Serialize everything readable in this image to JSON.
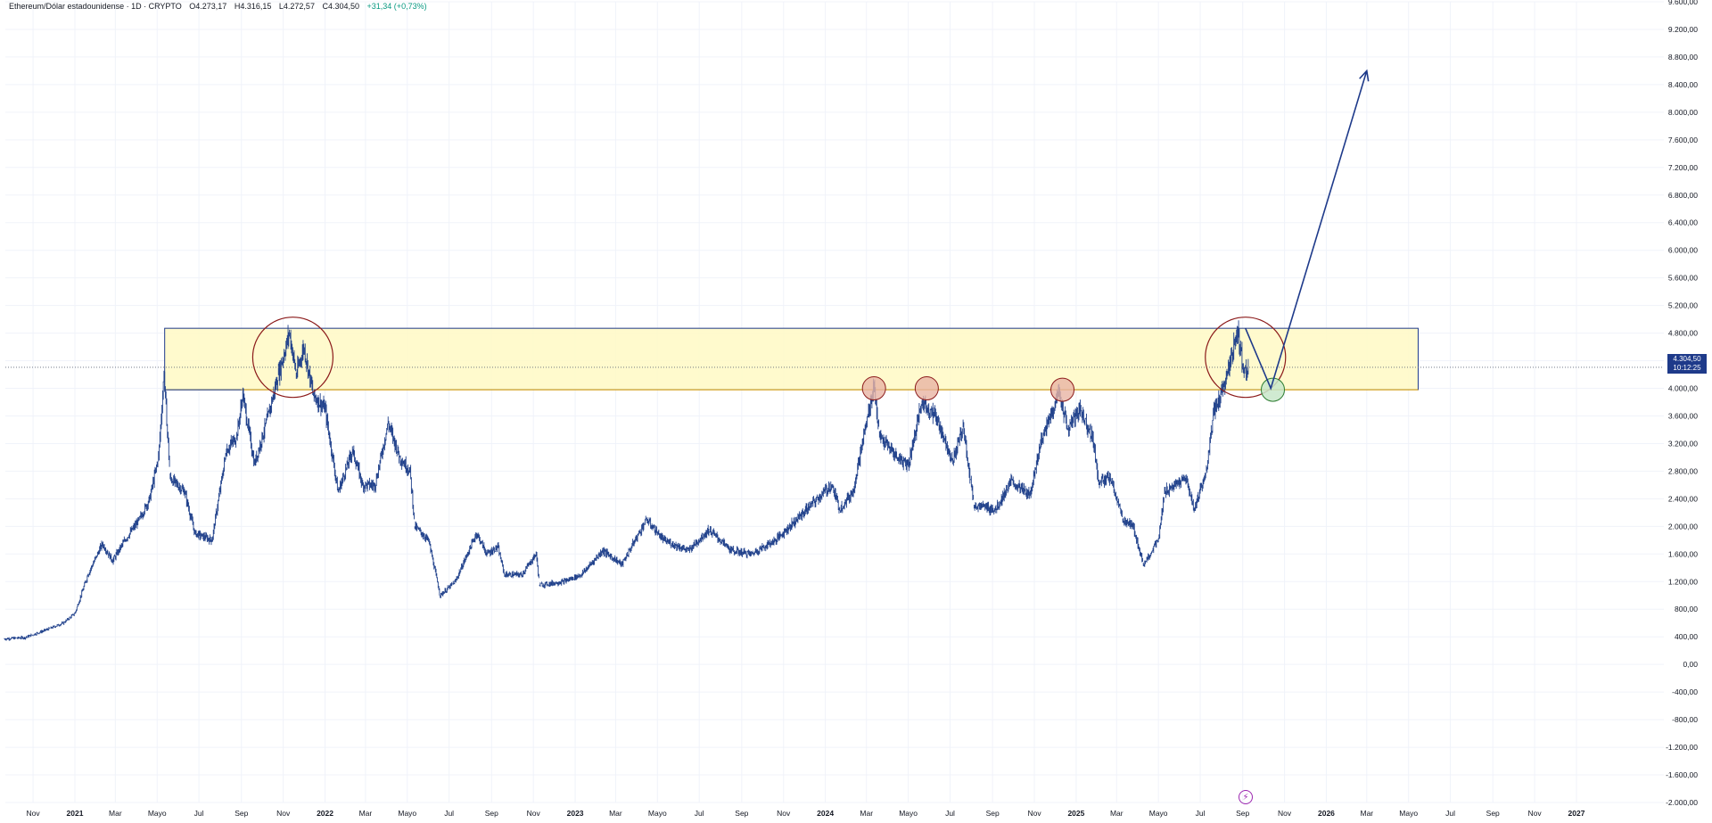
{
  "header": {
    "symbol": "Ethereum/Dólar estadounidense · 1D · CRYPTO",
    "open": "O4.273,17",
    "high": "H4.316,15",
    "low": "L4.272,57",
    "close": "C4.304,50",
    "change": "+31,34 (+0,73%)"
  },
  "price_tag": {
    "price": "4.304,50",
    "countdown": "10:12:25"
  },
  "colors": {
    "candle": "#1e3f8a",
    "zone_fill": "#fff9c4",
    "zone_border": "#1e3a8a",
    "zone_bottom": "#e0a000",
    "red_circle": "#8b1a1a",
    "touch_fill": "#e8b4a4",
    "retest_fill": "#c8e6c9",
    "retest_border": "#2e7d32",
    "arrow": "#1e3a8a",
    "grid": "#f0f3fa",
    "price_tag_bg": "#1e3a8a",
    "event_marker": "#9c27b0"
  },
  "icons": {
    "event_marker": "lightning-icon"
  },
  "chart_data": {
    "type": "candlestick",
    "title": "Ethereum/Dólar estadounidense · 1D · CRYPTO",
    "xlabel": "",
    "ylabel": "",
    "ylim": [
      -2000,
      9600
    ],
    "y_ticks": [
      "9.600,00",
      "9.200,00",
      "8.800,00",
      "8.400,00",
      "8.000,00",
      "7.600,00",
      "7.200,00",
      "6.800,00",
      "6.400,00",
      "6.000,00",
      "5.600,00",
      "5.200,00",
      "4.800,00",
      "4.400,00",
      "4.000,00",
      "3.600,00",
      "3.200,00",
      "2.800,00",
      "2.400,00",
      "2.000,00",
      "1.600,00",
      "1.200,00",
      "800,00",
      "400,00",
      "0,00",
      "-400,00",
      "-800,00",
      "-1.200,00",
      "-1.600,00",
      "-2.000,00"
    ],
    "y_tick_values": [
      9600,
      9200,
      8800,
      8400,
      8000,
      7600,
      7200,
      6800,
      6400,
      6000,
      5600,
      5200,
      4800,
      4400,
      4000,
      3600,
      3200,
      2800,
      2400,
      2000,
      1600,
      1200,
      800,
      400,
      0,
      -400,
      -800,
      -1200,
      -1600,
      -2000
    ],
    "x_ticks": [
      {
        "label": "Nov",
        "date": "2020-11-01",
        "bold": false
      },
      {
        "label": "2021",
        "date": "2021-01-01",
        "bold": true
      },
      {
        "label": "Mar",
        "date": "2021-03-01",
        "bold": false
      },
      {
        "label": "Mayo",
        "date": "2021-05-01",
        "bold": false
      },
      {
        "label": "Jul",
        "date": "2021-07-01",
        "bold": false
      },
      {
        "label": "Sep",
        "date": "2021-09-01",
        "bold": false
      },
      {
        "label": "Nov",
        "date": "2021-11-01",
        "bold": false
      },
      {
        "label": "2022",
        "date": "2022-01-01",
        "bold": true
      },
      {
        "label": "Mar",
        "date": "2022-03-01",
        "bold": false
      },
      {
        "label": "Mayo",
        "date": "2022-05-01",
        "bold": false
      },
      {
        "label": "Jul",
        "date": "2022-07-01",
        "bold": false
      },
      {
        "label": "Sep",
        "date": "2022-09-01",
        "bold": false
      },
      {
        "label": "Nov",
        "date": "2022-11-01",
        "bold": false
      },
      {
        "label": "2023",
        "date": "2023-01-01",
        "bold": true
      },
      {
        "label": "Mar",
        "date": "2023-03-01",
        "bold": false
      },
      {
        "label": "Mayo",
        "date": "2023-05-01",
        "bold": false
      },
      {
        "label": "Jul",
        "date": "2023-07-01",
        "bold": false
      },
      {
        "label": "Sep",
        "date": "2023-09-01",
        "bold": false
      },
      {
        "label": "Nov",
        "date": "2023-11-01",
        "bold": false
      },
      {
        "label": "2024",
        "date": "2024-01-01",
        "bold": true
      },
      {
        "label": "Mar",
        "date": "2024-03-01",
        "bold": false
      },
      {
        "label": "Mayo",
        "date": "2024-05-01",
        "bold": false
      },
      {
        "label": "Jul",
        "date": "2024-07-01",
        "bold": false
      },
      {
        "label": "Sep",
        "date": "2024-09-01",
        "bold": false
      },
      {
        "label": "Nov",
        "date": "2024-11-01",
        "bold": false
      },
      {
        "label": "2025",
        "date": "2025-01-01",
        "bold": true
      },
      {
        "label": "Mar",
        "date": "2025-03-01",
        "bold": false
      },
      {
        "label": "Mayo",
        "date": "2025-05-01",
        "bold": false
      },
      {
        "label": "Jul",
        "date": "2025-07-01",
        "bold": false
      },
      {
        "label": "Sep",
        "date": "2025-09-01",
        "bold": false
      },
      {
        "label": "Nov",
        "date": "2025-11-01",
        "bold": false
      },
      {
        "label": "2026",
        "date": "2026-01-01",
        "bold": true
      },
      {
        "label": "Mar",
        "date": "2026-03-01",
        "bold": false
      },
      {
        "label": "Mayo",
        "date": "2026-05-01",
        "bold": false
      },
      {
        "label": "Jul",
        "date": "2026-07-01",
        "bold": false
      },
      {
        "label": "Sep",
        "date": "2026-09-01",
        "bold": false
      },
      {
        "label": "Nov",
        "date": "2026-11-01",
        "bold": false
      },
      {
        "label": "2027",
        "date": "2027-01-01",
        "bold": true
      }
    ],
    "series": [
      {
        "type": "price-path",
        "points": [
          [
            "2020-09-20",
            370
          ],
          [
            "2020-10-20",
            390
          ],
          [
            "2020-11-20",
            500
          ],
          [
            "2020-12-15",
            600
          ],
          [
            "2021-01-01",
            740
          ],
          [
            "2021-01-20",
            1300
          ],
          [
            "2021-02-10",
            1750
          ],
          [
            "2021-02-25",
            1500
          ],
          [
            "2021-03-15",
            1800
          ],
          [
            "2021-04-05",
            2100
          ],
          [
            "2021-04-20",
            2400
          ],
          [
            "2021-05-03",
            3000
          ],
          [
            "2021-05-11",
            4200
          ],
          [
            "2021-05-20",
            2700
          ],
          [
            "2021-06-10",
            2500
          ],
          [
            "2021-06-25",
            1900
          ],
          [
            "2021-07-20",
            1800
          ],
          [
            "2021-08-10",
            3100
          ],
          [
            "2021-08-25",
            3300
          ],
          [
            "2021-09-03",
            3900
          ],
          [
            "2021-09-20",
            2900
          ],
          [
            "2021-10-10",
            3600
          ],
          [
            "2021-10-25",
            4200
          ],
          [
            "2021-11-10",
            4800
          ],
          [
            "2021-11-20",
            4200
          ],
          [
            "2021-12-01",
            4600
          ],
          [
            "2021-12-15",
            3900
          ],
          [
            "2022-01-01",
            3700
          ],
          [
            "2022-01-20",
            2500
          ],
          [
            "2022-02-10",
            3100
          ],
          [
            "2022-02-25",
            2600
          ],
          [
            "2022-03-15",
            2600
          ],
          [
            "2022-04-03",
            3500
          ],
          [
            "2022-04-20",
            3000
          ],
          [
            "2022-05-05",
            2800
          ],
          [
            "2022-05-12",
            2000
          ],
          [
            "2022-06-01",
            1800
          ],
          [
            "2022-06-18",
            1000
          ],
          [
            "2022-07-10",
            1200
          ],
          [
            "2022-08-10",
            1900
          ],
          [
            "2022-08-25",
            1600
          ],
          [
            "2022-09-10",
            1700
          ],
          [
            "2022-09-20",
            1300
          ],
          [
            "2022-10-15",
            1300
          ],
          [
            "2022-11-05",
            1600
          ],
          [
            "2022-11-10",
            1150
          ],
          [
            "2022-12-15",
            1200
          ],
          [
            "2023-01-10",
            1300
          ],
          [
            "2023-02-10",
            1650
          ],
          [
            "2023-03-10",
            1450
          ],
          [
            "2023-04-15",
            2100
          ],
          [
            "2023-05-10",
            1800
          ],
          [
            "2023-06-15",
            1650
          ],
          [
            "2023-07-15",
            1950
          ],
          [
            "2023-08-17",
            1650
          ],
          [
            "2023-09-15",
            1600
          ],
          [
            "2023-10-20",
            1800
          ],
          [
            "2023-11-15",
            2050
          ],
          [
            "2023-12-10",
            2300
          ],
          [
            "2024-01-10",
            2600
          ],
          [
            "2024-01-22",
            2250
          ],
          [
            "2024-02-10",
            2500
          ],
          [
            "2024-02-28",
            3400
          ],
          [
            "2024-03-12",
            4050
          ],
          [
            "2024-03-20",
            3300
          ],
          [
            "2024-04-15",
            3000
          ],
          [
            "2024-05-01",
            2900
          ],
          [
            "2024-05-21",
            3800
          ],
          [
            "2024-06-10",
            3600
          ],
          [
            "2024-07-05",
            2950
          ],
          [
            "2024-07-20",
            3450
          ],
          [
            "2024-08-05",
            2300
          ],
          [
            "2024-09-06",
            2250
          ],
          [
            "2024-09-28",
            2650
          ],
          [
            "2024-10-25",
            2450
          ],
          [
            "2024-11-10",
            3200
          ],
          [
            "2024-12-07",
            3950
          ],
          [
            "2024-12-20",
            3400
          ],
          [
            "2025-01-06",
            3700
          ],
          [
            "2025-01-25",
            3300
          ],
          [
            "2025-02-03",
            2650
          ],
          [
            "2025-02-20",
            2700
          ],
          [
            "2025-03-10",
            2100
          ],
          [
            "2025-03-25",
            2000
          ],
          [
            "2025-04-09",
            1450
          ],
          [
            "2025-05-01",
            1800
          ],
          [
            "2025-05-10",
            2500
          ],
          [
            "2025-06-10",
            2700
          ],
          [
            "2025-06-22",
            2250
          ],
          [
            "2025-07-10",
            2800
          ],
          [
            "2025-07-20",
            3600
          ],
          [
            "2025-08-10",
            4200
          ],
          [
            "2025-08-24",
            4850
          ],
          [
            "2025-09-02",
            4300
          ],
          [
            "2025-09-10",
            4304.5
          ]
        ]
      }
    ],
    "annotations": {
      "resistance_zone": {
        "x_start": "2021-05-12",
        "x_end": "2026-05-15",
        "y_top": 4870,
        "y_bottom": 3980,
        "left_box_x_end": "2021-09-01"
      },
      "last_price_line": 4304.5,
      "circles_large": [
        {
          "center": [
            "2021-11-15",
            4450
          ]
        },
        {
          "center": [
            "2025-09-05",
            4450
          ]
        }
      ],
      "circles_small": [
        {
          "center": [
            "2024-03-12",
            4000
          ]
        },
        {
          "center": [
            "2024-05-28",
            4000
          ]
        },
        {
          "center": [
            "2024-12-12",
            3980
          ]
        }
      ],
      "retest_circle": {
        "center": [
          "2025-10-15",
          3980
        ]
      },
      "projection": [
        [
          "2025-09-05",
          4870
        ],
        [
          "2025-10-12",
          4000
        ],
        [
          "2026-03-01",
          8600
        ]
      ]
    },
    "legend": "none",
    "grid": true
  }
}
